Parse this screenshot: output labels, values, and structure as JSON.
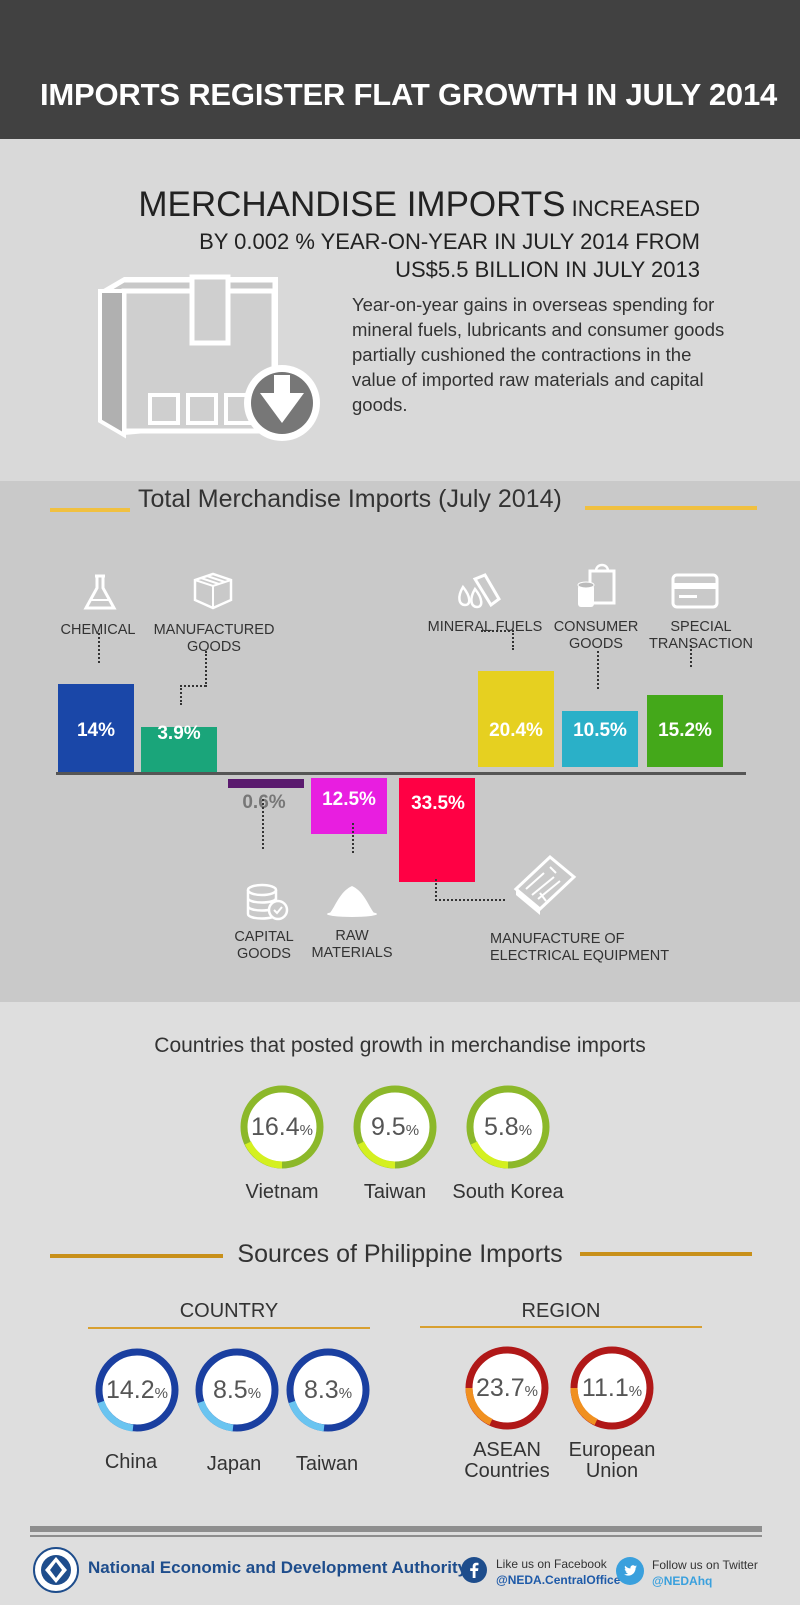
{
  "header": {
    "title": "IMPORTS REGISTER FLAT GROWTH IN JULY 2014"
  },
  "intro": {
    "headline_big": "MERCHANDISE IMPORTS",
    "headline_line1_rest": " INCREASED",
    "headline_line2": "BY 0.002 % YEAR-ON-YEAR IN JULY 2014 FROM",
    "headline_line3": "US$5.5 BILLION IN JULY 2013",
    "body": "Year-on-year gains in overseas spending for mineral fuels, lubricants and consumer goods partially cushioned the contractions in the value of imported raw materials and capital goods."
  },
  "imports_chart": {
    "title": "Total Merchandise Imports (July 2014)",
    "categories": {
      "chemical": {
        "label": "CHEMICAL",
        "pct_label": "14%",
        "value": 14,
        "color": "#1a47a8"
      },
      "manufactured": {
        "label": "MANUFACTURED GOODS",
        "pct_label": "3.9%",
        "value": 3.9,
        "color": "#1aa57a"
      },
      "capital": {
        "label": "CAPITAL GOODS",
        "pct_label": "0.6%",
        "value": -0.6,
        "color": "#5a1a6e"
      },
      "raw": {
        "label": "RAW MATERIALS",
        "pct_label": "12.5%",
        "value": -12.5,
        "color": "#e81ee0"
      },
      "electrical": {
        "label": "MANUFACTURE OF ELECTRICAL EQUIPMENT",
        "pct_label": "33.5%",
        "value": -33.5,
        "color": "#ff0044"
      },
      "fuels": {
        "label": "MINERAL FUELS",
        "pct_label": "20.4%",
        "value": 20.4,
        "color": "#e6d020"
      },
      "consumer": {
        "label": "CONSUMER GOODS",
        "pct_label": "10.5%",
        "value": 10.5,
        "color": "#2ab0c8"
      },
      "special": {
        "label": "SPECIAL TRANSACTION",
        "pct_label": "15.2%",
        "value": 15.2,
        "color": "#44a81a"
      }
    }
  },
  "growth": {
    "title": "Countries that posted growth in merchandise imports",
    "items": [
      {
        "name": "Vietnam",
        "value": "16.4",
        "unit": "%"
      },
      {
        "name": "Taiwan",
        "value": "9.5",
        "unit": "%"
      },
      {
        "name": "South Korea",
        "value": "5.8",
        "unit": "%"
      }
    ],
    "colors": {
      "ring": "#8cb82a",
      "accent": "#d4f020"
    }
  },
  "sources": {
    "title": "Sources of Philippine Imports",
    "country_head": "COUNTRY",
    "region_head": "REGION",
    "countries": [
      {
        "name": "China",
        "value": "14.2",
        "unit": "%"
      },
      {
        "name": "Japan",
        "value": "8.5",
        "unit": "%"
      },
      {
        "name": "Taiwan",
        "value": "8.3",
        "unit": "%"
      }
    ],
    "regions": [
      {
        "name_l1": "ASEAN",
        "name_l2": "Countries",
        "value": "23.7",
        "unit": "%"
      },
      {
        "name_l1": "European",
        "name_l2": "Union",
        "value": "11.1",
        "unit": "%"
      }
    ],
    "colors": {
      "country_ring": "#1a3fa0",
      "country_accent": "#6ac4f0",
      "region_ring": "#b01818",
      "region_accent": "#f09020"
    }
  },
  "footer": {
    "agency": "National Economic and Development Authority",
    "facebook_line1": "Like us on Facebook",
    "facebook_line2": "@NEDA.CentralOffice",
    "twitter_line1": "Follow us on Twitter",
    "twitter_line2": "@NEDAhq"
  }
}
